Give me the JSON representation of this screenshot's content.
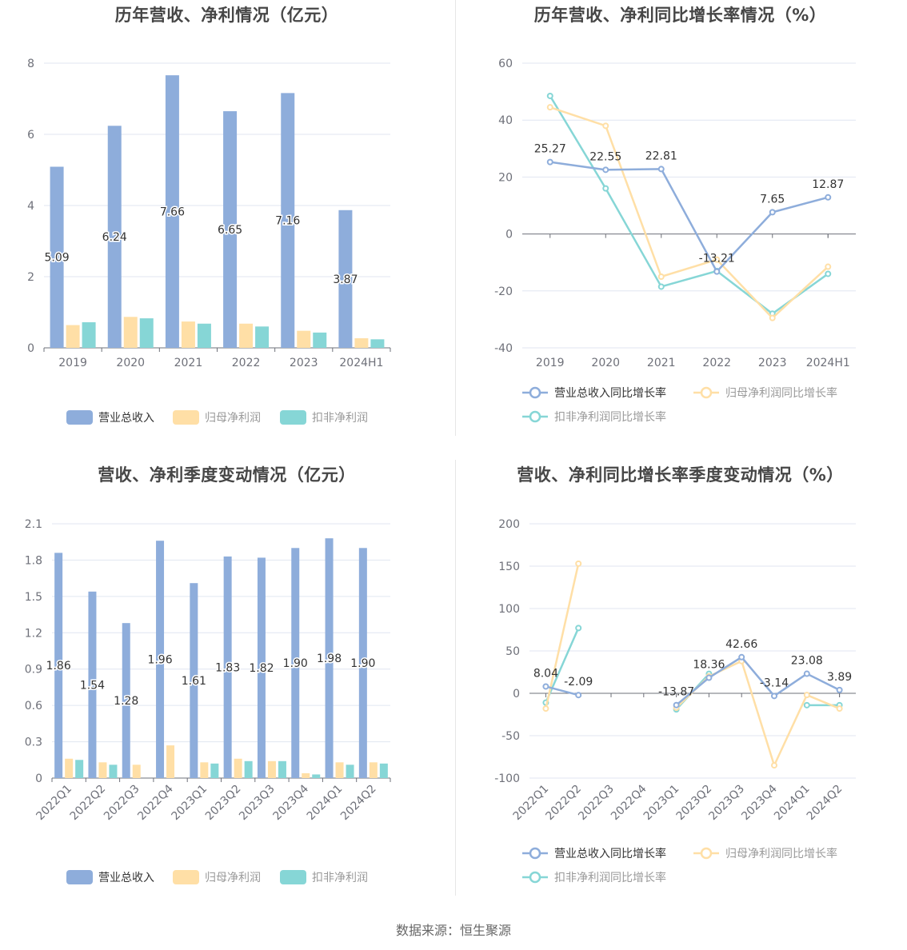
{
  "source": "数据来源：恒生聚源",
  "chart_data": [
    {
      "type": "bar",
      "title": "历年营收、净利情况（亿元）",
      "categories": [
        "2019",
        "2020",
        "2021",
        "2022",
        "2023",
        "2024H1"
      ],
      "ylim": [
        0,
        8
      ],
      "yticks": [
        0,
        2,
        4,
        6,
        8
      ],
      "series": [
        {
          "name": "营业总收入",
          "color": "#8eaddb",
          "values": [
            5.09,
            6.24,
            7.66,
            6.65,
            7.16,
            3.87
          ],
          "labels": [
            "5.09",
            "6.24",
            "7.66",
            "6.65",
            "7.16",
            "3.87"
          ]
        },
        {
          "name": "归母净利润",
          "color": "#ffdfa6",
          "values": [
            0.64,
            0.87,
            0.74,
            0.68,
            0.48,
            0.27
          ]
        },
        {
          "name": "扣非净利润",
          "color": "#86d6d6",
          "values": [
            0.72,
            0.83,
            0.68,
            0.6,
            0.43,
            0.24
          ]
        }
      ],
      "legend": "bottom"
    },
    {
      "type": "line",
      "title": "历年营收、净利同比增长率情况（%）",
      "categories": [
        "2019",
        "2020",
        "2021",
        "2022",
        "2023",
        "2024H1"
      ],
      "ylim": [
        -40,
        60
      ],
      "yticks": [
        -40,
        -20,
        0,
        20,
        40,
        60
      ],
      "series": [
        {
          "name": "营业总收入同比增长率",
          "color": "#8eaddb",
          "values": [
            25.27,
            22.55,
            22.81,
            -13.21,
            7.65,
            12.87
          ],
          "labels": [
            "25.27",
            "22.55",
            "22.81",
            "-13.21",
            "7.65",
            "12.87"
          ]
        },
        {
          "name": "归母净利润同比增长率",
          "color": "#ffdfa6",
          "values": [
            44.5,
            38.0,
            -15.0,
            -9.0,
            -29.5,
            -11.5
          ]
        },
        {
          "name": "扣非净利润同比增长率",
          "color": "#86d6d6",
          "values": [
            48.5,
            16.0,
            -18.5,
            -13.0,
            -28.0,
            -14.0
          ]
        }
      ],
      "legend": "bottom"
    },
    {
      "type": "bar",
      "title": "营收、净利季度变动情况（亿元）",
      "categories": [
        "2022Q1",
        "2022Q2",
        "2022Q3",
        "2022Q4",
        "2023Q1",
        "2023Q2",
        "2023Q3",
        "2023Q4",
        "2024Q1",
        "2024Q2"
      ],
      "ylim": [
        0,
        2.1
      ],
      "yticks": [
        0,
        0.3,
        0.6,
        0.9,
        1.2,
        1.5,
        1.8,
        2.1
      ],
      "ytick_labels": [
        "0",
        "0.3",
        "0.6",
        "0.9",
        "1.2",
        "1.5",
        "1.8",
        "2.1"
      ],
      "series": [
        {
          "name": "营业总收入",
          "color": "#8eaddb",
          "values": [
            1.86,
            1.54,
            1.28,
            1.96,
            1.61,
            1.83,
            1.82,
            1.9,
            1.98,
            1.9
          ],
          "labels": [
            "1.86",
            "1.54",
            "1.28",
            "1.96",
            "1.61",
            "1.83",
            "1.82",
            "1.90",
            "1.98",
            "1.90"
          ]
        },
        {
          "name": "归母净利润",
          "color": "#ffdfa6",
          "values": [
            0.16,
            0.13,
            0.11,
            0.27,
            0.13,
            0.16,
            0.14,
            0.04,
            0.13,
            0.13
          ]
        },
        {
          "name": "扣非净利润",
          "color": "#86d6d6",
          "values": [
            0.15,
            0.11,
            null,
            null,
            0.12,
            0.14,
            0.14,
            0.03,
            0.11,
            0.12
          ]
        }
      ],
      "legend": "bottom"
    },
    {
      "type": "line",
      "title": "营收、净利同比增长率季度变动情况（%）",
      "categories": [
        "2022Q1",
        "2022Q2",
        "2022Q3",
        "2022Q4",
        "2023Q1",
        "2023Q2",
        "2023Q3",
        "2023Q4",
        "2024Q1",
        "2024Q2"
      ],
      "ylim": [
        -100,
        200
      ],
      "yticks": [
        -100,
        -50,
        0,
        50,
        100,
        150,
        200
      ],
      "series": [
        {
          "name": "营业总收入同比增长率",
          "color": "#8eaddb",
          "values": [
            8.04,
            -2.09,
            null,
            null,
            -13.87,
            18.36,
            42.66,
            -3.14,
            23.08,
            3.89
          ],
          "labels": [
            "8.04",
            "-2.09",
            null,
            null,
            "-13.87",
            "18.36",
            "42.66",
            "-3.14",
            "23.08",
            "3.89"
          ]
        },
        {
          "name": "归母净利润同比增长率",
          "color": "#ffdfa6",
          "values": [
            -18.0,
            153.0,
            null,
            null,
            -17.0,
            20.0,
            38.0,
            -85.0,
            -2.0,
            -18.0
          ]
        },
        {
          "name": "扣非净利润同比增长率",
          "color": "#86d6d6",
          "values": [
            -11.0,
            77.0,
            null,
            null,
            -19.0,
            23.0,
            null,
            null,
            -14.0,
            -14.0
          ]
        }
      ],
      "legend": "bottom"
    }
  ]
}
